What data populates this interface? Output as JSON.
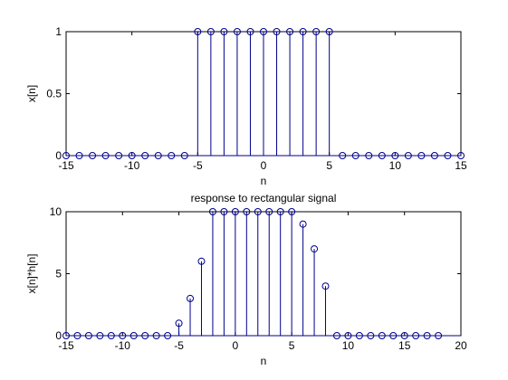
{
  "figure": {
    "background": "#ffffff",
    "stem_color": "#00008b",
    "axes_color": "#000000"
  },
  "chart_data": [
    {
      "type": "stem",
      "title": "",
      "xlabel": "n",
      "ylabel": "x[n]",
      "xlim": [
        -15,
        15
      ],
      "ylim": [
        0,
        1
      ],
      "xticks": [
        -15,
        -10,
        -5,
        0,
        5,
        10,
        15
      ],
      "yticks": [
        0,
        0.5,
        1
      ],
      "x": [
        -15,
        -14,
        -13,
        -12,
        -11,
        -10,
        -9,
        -8,
        -7,
        -6,
        -5,
        -4,
        -3,
        -2,
        -1,
        0,
        1,
        2,
        3,
        4,
        5,
        6,
        7,
        8,
        9,
        10,
        11,
        12,
        13,
        14,
        15
      ],
      "y": [
        0,
        0,
        0,
        0,
        0,
        0,
        0,
        0,
        0,
        0,
        1,
        1,
        1,
        1,
        1,
        1,
        1,
        1,
        1,
        1,
        1,
        0,
        0,
        0,
        0,
        0,
        0,
        0,
        0,
        0,
        0
      ]
    },
    {
      "type": "stem",
      "title": "response to rectangular signal",
      "xlabel": "n",
      "ylabel": "x[n]*h[n]",
      "xlim": [
        -15,
        20
      ],
      "ylim": [
        0,
        10
      ],
      "xticks": [
        -15,
        -10,
        -5,
        0,
        5,
        10,
        15,
        20
      ],
      "yticks": [
        0,
        5,
        10
      ],
      "x": [
        -15,
        -14,
        -13,
        -12,
        -11,
        -10,
        -9,
        -8,
        -7,
        -6,
        -5,
        -4,
        -3,
        -2,
        -1,
        0,
        1,
        2,
        3,
        4,
        5,
        6,
        7,
        8,
        9,
        10,
        11,
        12,
        13,
        14,
        15,
        16,
        17,
        18
      ],
      "y": [
        0,
        0,
        0,
        0,
        0,
        0,
        0,
        0,
        0,
        0,
        1,
        3,
        6,
        10,
        10,
        10,
        10,
        10,
        10,
        10,
        10,
        9,
        7,
        4,
        0,
        0,
        0,
        0,
        0,
        0,
        0,
        0,
        0,
        0
      ]
    }
  ]
}
